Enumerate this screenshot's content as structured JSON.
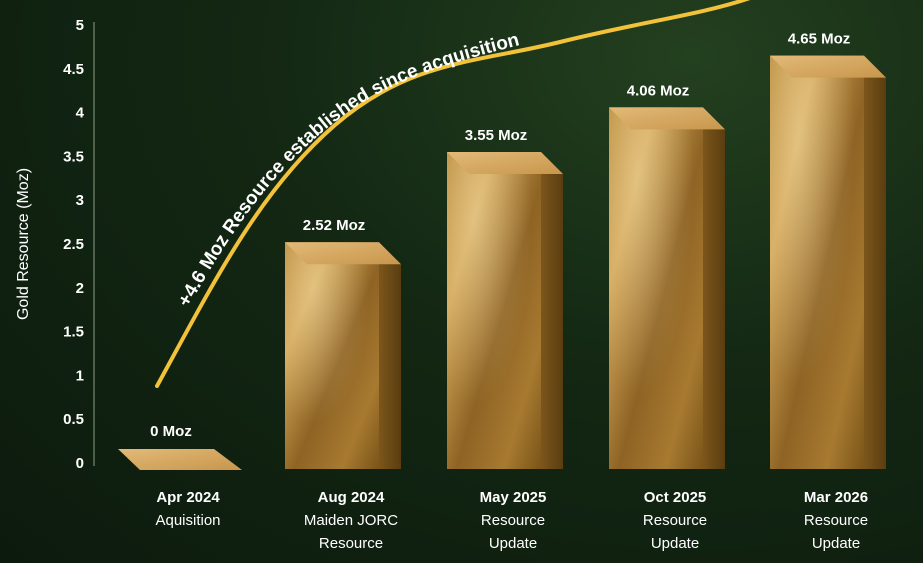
{
  "chart_data": {
    "type": "bar",
    "ylabel": "Gold Resource (Moz)",
    "ylim": [
      0,
      5
    ],
    "yticks": [
      "0",
      "0.5",
      "1",
      "1.5",
      "2",
      "2.5",
      "3",
      "3.5",
      "4",
      "4.5",
      "5"
    ],
    "categories": [
      {
        "date": "Apr 2024",
        "desc": [
          "Aquisition"
        ]
      },
      {
        "date": "Aug 2024",
        "desc": [
          "Maiden JORC",
          "Resource"
        ]
      },
      {
        "date": "May 2025",
        "desc": [
          "Resource",
          "Update"
        ]
      },
      {
        "date": "Oct 2025",
        "desc": [
          "Resource",
          "Update"
        ]
      },
      {
        "date": "Mar 2026",
        "desc": [
          "Resource",
          "Update"
        ]
      }
    ],
    "values": [
      0,
      2.52,
      3.55,
      4.06,
      4.65
    ],
    "value_labels": [
      "0 Moz",
      "2.52 Moz",
      "3.55 Moz",
      "4.06 Moz",
      "4.65 Moz"
    ],
    "annotation": "+4.6 Moz Resource established since acquisition",
    "colors": {
      "background": "#132713",
      "bar_front": "#a9782a",
      "bar_top": "#d8ad68",
      "bar_side": "#6e4b17",
      "trend_line": "#f2c23a",
      "text": "#ffffff"
    }
  }
}
